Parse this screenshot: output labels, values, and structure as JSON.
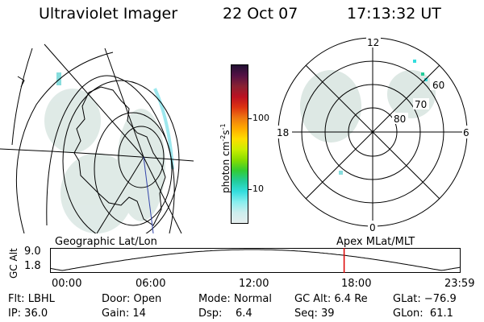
{
  "header": {
    "title": "Ultraviolet Imager",
    "date": "22 Oct 07",
    "time": "17:13:32 UT"
  },
  "colorbar": {
    "unit_label": "photon cm",
    "unit_exp1": "-2",
    "unit_mid": "s",
    "unit_exp2": "-1",
    "ticks": [
      "100",
      "10"
    ],
    "colors": [
      "#221133",
      "#551144",
      "#882233",
      "#bb1122",
      "#dd3311",
      "#ee7711",
      "#ffaa00",
      "#ffdd00",
      "#ccee00",
      "#88dd00",
      "#33cc33",
      "#22cc99",
      "#33dddd",
      "#88eeee",
      "#cceeee",
      "#e6eeee"
    ]
  },
  "polar_plot": {
    "labels": {
      "top": "12",
      "bottom": "0",
      "left": "18",
      "right": "6"
    },
    "ring_labels": [
      "60",
      "70",
      "80"
    ]
  },
  "altitude_plot": {
    "ylabel": "GC Alt",
    "yticks": [
      "9.0",
      "1.8"
    ],
    "left_caption": "Geographic Lat/Lon",
    "right_caption": "Apex MLat/MLT",
    "xticks": [
      "00:00",
      "06:00",
      "12:00",
      "18:00",
      "23:59"
    ],
    "current_time_fraction": 0.7178,
    "marker_color": "#dd0000"
  },
  "info": {
    "row1": [
      "Flt: LBHL",
      "Door: Open",
      "Mode: Normal",
      "GC Alt: 6.4 Re",
      "GLat: −76.9"
    ],
    "row2": [
      "IP: 36.0",
      "Gain: 14",
      "Dsp:    6.4",
      "Seq: 39",
      "GLon:  61.1"
    ]
  }
}
